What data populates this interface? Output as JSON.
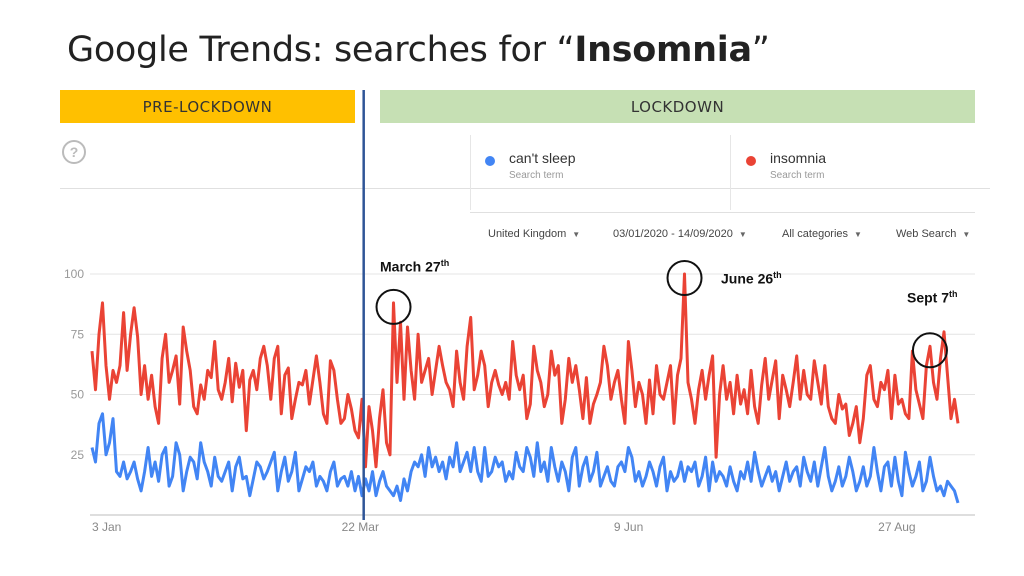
{
  "title": {
    "prefix": "Google Trends: searches for “",
    "term": "Insomnia",
    "suffix": "”"
  },
  "bands": {
    "pre": "PRE-LOCKDOWN",
    "lock": "LOCKDOWN"
  },
  "help_icon": "?",
  "legend": [
    {
      "name": "can't sleep",
      "sub": "Search term",
      "color": "#4285f4"
    },
    {
      "name": "insomnia",
      "sub": "Search term",
      "color": "#ea4335"
    }
  ],
  "filters": {
    "region": "United Kingdom",
    "dates": "03/01/2020 - 14/09/2020",
    "categories": "All categories",
    "search_type": "Web Search"
  },
  "annotations": [
    {
      "label": "March 27",
      "sup": "th"
    },
    {
      "label": "June 26",
      "sup": "th"
    },
    {
      "label": "Sept 7",
      "sup": "th"
    }
  ],
  "colors": {
    "insomnia": "#ea4335",
    "cant_sleep": "#4285f4",
    "divider": "#2f5597",
    "pre_band": "#ffc000",
    "lock_band": "#c6e0b4"
  },
  "chart_data": {
    "type": "line",
    "x_tick_labels": [
      "3 Jan",
      "22 Mar",
      "9 Jun",
      "27 Aug"
    ],
    "x_start": "2020-01-03",
    "x_end": "2020-09-14",
    "y_tick_labels": [
      "100",
      "75",
      "50",
      "25"
    ],
    "ylim": [
      0,
      100
    ],
    "grid": true,
    "lockdown_divider": "2020-03-23",
    "series": [
      {
        "name": "insomnia",
        "values": [
          68,
          52,
          75,
          88,
          62,
          48,
          60,
          55,
          62,
          84,
          60,
          75,
          86,
          74,
          50,
          62,
          48,
          58,
          45,
          38,
          65,
          75,
          55,
          60,
          66,
          46,
          78,
          68,
          60,
          45,
          42,
          54,
          48,
          60,
          57,
          72,
          52,
          48,
          55,
          65,
          47,
          63,
          53,
          60,
          35,
          56,
          60,
          52,
          65,
          70,
          62,
          48,
          65,
          70,
          42,
          58,
          61,
          40,
          48,
          55,
          54,
          60,
          46,
          56,
          66,
          55,
          42,
          38,
          64,
          60,
          48,
          38,
          40,
          50,
          44,
          35,
          32,
          48,
          20,
          45,
          35,
          20,
          40,
          52,
          30,
          25,
          88,
          55,
          80,
          48,
          78,
          60,
          48,
          75,
          55,
          60,
          65,
          50,
          60,
          70,
          62,
          55,
          52,
          45,
          68,
          55,
          48,
          70,
          82,
          52,
          58,
          68,
          62,
          45,
          55,
          60,
          54,
          50,
          55,
          48,
          72,
          58,
          52,
          58,
          40,
          46,
          70,
          60,
          55,
          45,
          50,
          68,
          58,
          62,
          38,
          48,
          65,
          55,
          62,
          52,
          40,
          57,
          38,
          46,
          50,
          55,
          70,
          62,
          48,
          55,
          60,
          48,
          38,
          72,
          60,
          45,
          55,
          50,
          38,
          56,
          42,
          62,
          50,
          48,
          55,
          62,
          38,
          58,
          65,
          100,
          55,
          48,
          38,
          52,
          60,
          48,
          58,
          66,
          24,
          50,
          62,
          48,
          55,
          42,
          58,
          46,
          52,
          42,
          60,
          45,
          38,
          54,
          65,
          48,
          56,
          64,
          40,
          58,
          52,
          45,
          55,
          66,
          48,
          60,
          50,
          48,
          64,
          55,
          46,
          62,
          45,
          40,
          38,
          50,
          44,
          46,
          33,
          38,
          45,
          30,
          40,
          58,
          62,
          48,
          45,
          55,
          52,
          60,
          40,
          58,
          46,
          48,
          42,
          40,
          68,
          52,
          46,
          40,
          62,
          70,
          55,
          48,
          65,
          76,
          58,
          40,
          48,
          38
        ]
      },
      {
        "name": "can't sleep",
        "values": [
          28,
          22,
          38,
          42,
          25,
          30,
          40,
          18,
          16,
          22,
          15,
          18,
          22,
          15,
          10,
          18,
          28,
          16,
          22,
          14,
          25,
          28,
          12,
          16,
          30,
          25,
          10,
          18,
          24,
          22,
          15,
          30,
          22,
          18,
          12,
          24,
          16,
          14,
          18,
          22,
          10,
          20,
          24,
          15,
          16,
          8,
          15,
          22,
          20,
          15,
          18,
          22,
          26,
          10,
          18,
          24,
          14,
          18,
          26,
          10,
          15,
          20,
          18,
          22,
          12,
          16,
          14,
          10,
          18,
          22,
          12,
          15,
          16,
          12,
          18,
          10,
          16,
          8,
          15,
          10,
          18,
          8,
          14,
          18,
          12,
          10,
          8,
          12,
          6,
          15,
          10,
          18,
          22,
          20,
          25,
          16,
          28,
          20,
          24,
          18,
          22,
          15,
          24,
          20,
          30,
          18,
          22,
          26,
          18,
          28,
          18,
          14,
          28,
          16,
          18,
          24,
          20,
          22,
          14,
          18,
          15,
          26,
          20,
          18,
          28,
          24,
          16,
          30,
          18,
          22,
          14,
          28,
          20,
          14,
          22,
          18,
          10,
          24,
          28,
          12,
          20,
          24,
          14,
          18,
          26,
          12,
          16,
          20,
          14,
          12,
          20,
          22,
          18,
          28,
          24,
          14,
          18,
          12,
          16,
          22,
          18,
          12,
          20,
          24,
          10,
          18,
          14,
          16,
          22,
          14,
          20,
          18,
          22,
          12,
          16,
          24,
          10,
          22,
          14,
          18,
          16,
          12,
          20,
          14,
          10,
          18,
          15,
          22,
          14,
          26,
          18,
          12,
          16,
          20,
          14,
          18,
          10,
          16,
          22,
          14,
          18,
          20,
          12,
          24,
          18,
          14,
          22,
          12,
          20,
          28,
          16,
          10,
          14,
          20,
          12,
          16,
          24,
          18,
          10,
          14,
          20,
          12,
          16,
          28,
          18,
          10,
          20,
          22,
          12,
          24,
          14,
          8,
          26,
          18,
          12,
          16,
          22,
          10,
          14,
          24,
          16,
          10,
          12,
          8,
          14,
          12,
          10,
          5
        ]
      }
    ]
  }
}
